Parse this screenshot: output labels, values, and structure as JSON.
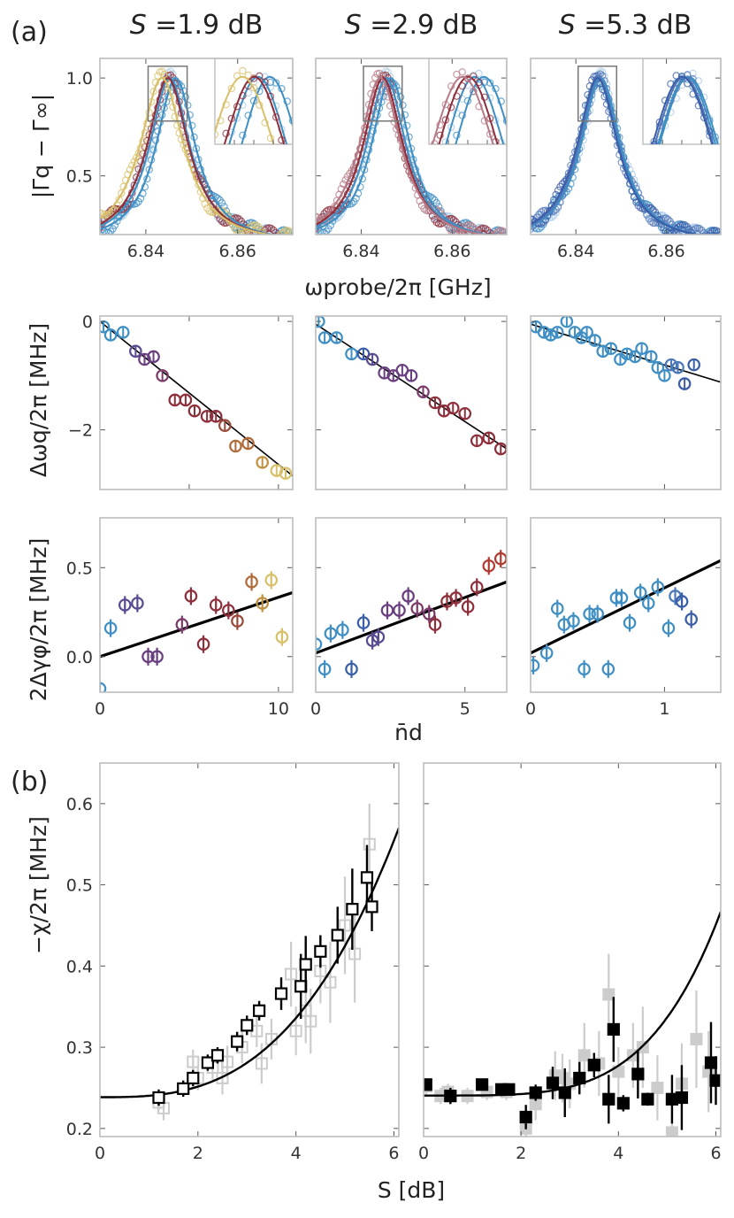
{
  "panel_labels": {
    "a": "(a)",
    "b": "(b)"
  },
  "titles": {
    "col1": {
      "sym": "S",
      "val": " =1.9 dB"
    },
    "col2": {
      "sym": "S",
      "val": " =2.9 dB"
    },
    "col3": {
      "sym": "S",
      "val": " =5.3 dB"
    }
  },
  "axis_labels": {
    "row1_y": "|Γq − Γ∞|",
    "row1_x": "ωprobe/2π [GHz]",
    "row2_y": "Δωq/2π [MHz]",
    "row3_y": "2Δγφ/2π [MHz]",
    "row3_x": "n̄d",
    "b_y": "−χ/2π [MHz]",
    "b_x": "S [dB]"
  },
  "colors": {
    "light_blue": "#8fbde0",
    "blue": "#3f8fc4",
    "dark_blue": "#3b5ea8",
    "purple": "#6a3f7f",
    "maroon": "#8e2f3c",
    "brown": "#b06a3a",
    "gold": "#d8c06a",
    "light_gray": "#cccccc",
    "black": "#000000"
  },
  "chart_data": [
    {
      "type": "scatter",
      "panel": "row1-col1",
      "title": "S =1.9 dB",
      "xlim": [
        6.83,
        6.872
      ],
      "ylim": [
        0.2,
        1.1
      ],
      "xticks": [
        6.84,
        6.86
      ],
      "yticks": [
        0.5,
        1.0
      ],
      "xtick_labels": [
        "6.84",
        "6.86"
      ],
      "ytick_labels": [
        "0.5",
        "1.0"
      ],
      "series": [
        {
          "name": "sky",
          "color": "#a8cbe8",
          "center": 6.8452,
          "hwhm": 0.0053
        },
        {
          "name": "blue",
          "color": "#3f8fc4",
          "center": 6.8465,
          "hwhm": 0.0052
        },
        {
          "name": "maroon",
          "color": "#8e2f3c",
          "center": 6.8448,
          "hwhm": 0.0055
        },
        {
          "name": "gold",
          "color": "#d8c06a",
          "center": 6.8435,
          "hwhm": 0.0058
        }
      ],
      "inset": {
        "xlim": [
          6.8405,
          6.849
        ],
        "ylim": [
          0.78,
          1.06
        ]
      }
    },
    {
      "type": "scatter",
      "panel": "row1-col2",
      "title": "S =2.9 dB",
      "xlim": [
        6.83,
        6.872
      ],
      "ylim": [
        0.2,
        1.1
      ],
      "xticks": [
        6.84,
        6.86
      ],
      "yticks": [
        0.5,
        1.0
      ],
      "xtick_labels": [
        "6.84",
        "6.86"
      ],
      "ytick_labels": [
        "",
        ""
      ],
      "series": [
        {
          "name": "sky",
          "color": "#a8cbe8",
          "center": 6.8455,
          "hwhm": 0.0053
        },
        {
          "name": "blue",
          "color": "#3f8fc4",
          "center": 6.8465,
          "hwhm": 0.0052
        },
        {
          "name": "maroon",
          "color": "#8e2f3c",
          "center": 6.8448,
          "hwhm": 0.0054
        },
        {
          "name": "rose",
          "color": "#b57a86",
          "center": 6.8442,
          "hwhm": 0.0056
        }
      ],
      "inset": {
        "xlim": [
          6.8405,
          6.849
        ],
        "ylim": [
          0.78,
          1.06
        ]
      }
    },
    {
      "type": "scatter",
      "panel": "row1-col3",
      "title": "S =5.3 dB",
      "xlim": [
        6.83,
        6.872
      ],
      "ylim": [
        0.2,
        1.1
      ],
      "xticks": [
        6.84,
        6.86
      ],
      "yticks": [
        0.5,
        1.0
      ],
      "xtick_labels": [
        "6.84",
        "6.86"
      ],
      "ytick_labels": [
        "",
        ""
      ],
      "series": [
        {
          "name": "sky",
          "color": "#a8cbe8",
          "center": 6.8455,
          "hwhm": 0.0054
        },
        {
          "name": "blue",
          "color": "#3f8fc4",
          "center": 6.8453,
          "hwhm": 0.0053
        },
        {
          "name": "mid",
          "color": "#5577b8",
          "center": 6.845,
          "hwhm": 0.0054
        },
        {
          "name": "navy",
          "color": "#3b5ea8",
          "center": 6.8448,
          "hwhm": 0.0055
        }
      ],
      "inset": {
        "xlim": [
          6.8405,
          6.849
        ],
        "ylim": [
          0.78,
          1.06
        ]
      }
    },
    {
      "type": "scatter",
      "panel": "row2-col1",
      "xlim": [
        0,
        10.8
      ],
      "ylim": [
        -3.1,
        0.1
      ],
      "xticks": [
        0,
        5,
        10
      ],
      "yticks": [
        0,
        -2
      ],
      "xtick_labels": [],
      "ytick_labels": [
        "0",
        "−2"
      ],
      "fit": {
        "x": [
          0,
          10.8
        ],
        "y": [
          0,
          -2.85
        ]
      },
      "points": {
        "x": [
          0.2,
          0.6,
          1.3,
          2.0,
          2.5,
          3.0,
          3.5,
          4.2,
          4.8,
          5.3,
          6.0,
          6.5,
          7.0,
          7.6,
          8.3,
          9.1,
          9.9,
          10.4
        ],
        "y": [
          -0.1,
          -0.25,
          -0.2,
          -0.55,
          -0.7,
          -0.65,
          -1.0,
          -1.45,
          -1.45,
          -1.65,
          -1.75,
          -1.75,
          -1.92,
          -2.3,
          -2.25,
          -2.6,
          -2.75,
          -2.8
        ],
        "colors": [
          "#3f8fc4",
          "#3f8fc4",
          "#3f8fc4",
          "#5a4a8f",
          "#6a3f7f",
          "#6a3f7f",
          "#7a3a6a",
          "#8e2f3c",
          "#8e2f3c",
          "#8e2f3c",
          "#8e2f3c",
          "#8e2f3c",
          "#9a4a3a",
          "#b06a3a",
          "#b06a3a",
          "#c09040",
          "#d8c06a",
          "#d8c06a"
        ]
      }
    },
    {
      "type": "scatter",
      "panel": "row2-col2",
      "xlim": [
        0,
        6.4
      ],
      "ylim": [
        -3.1,
        0.1
      ],
      "xticks": [
        0,
        5
      ],
      "yticks": [
        0,
        -2
      ],
      "xtick_labels": [],
      "ytick_labels": [
        "",
        ""
      ],
      "fit": {
        "x": [
          0,
          6.4
        ],
        "y": [
          -0.05,
          -2.35
        ]
      },
      "points": {
        "x": [
          0.1,
          0.3,
          0.7,
          1.2,
          1.6,
          1.9,
          2.3,
          2.6,
          2.9,
          3.2,
          3.6,
          4.0,
          4.3,
          4.6,
          5.0,
          5.4,
          5.8,
          6.2
        ],
        "y": [
          0.0,
          -0.3,
          -0.3,
          -0.6,
          -0.6,
          -0.7,
          -0.95,
          -1.0,
          -0.9,
          -1.0,
          -1.3,
          -1.5,
          -1.65,
          -1.6,
          -1.7,
          -2.2,
          -2.15,
          -2.35
        ],
        "colors": [
          "#3f8fc4",
          "#3f8fc4",
          "#3f8fc4",
          "#3f8fc4",
          "#3b5ea8",
          "#5a4a8f",
          "#6a3f7f",
          "#6a3f7f",
          "#6a3f7f",
          "#6a3f7f",
          "#7a3a6a",
          "#8e2f3c",
          "#8e2f3c",
          "#8e2f3c",
          "#8e2f3c",
          "#8e2f3c",
          "#8e2f3c",
          "#8e2f3c"
        ]
      }
    },
    {
      "type": "scatter",
      "panel": "row2-col3",
      "xlim": [
        0,
        1.42
      ],
      "ylim": [
        -3.1,
        0.1
      ],
      "xticks": [
        0,
        1
      ],
      "yticks": [
        0,
        -2
      ],
      "xtick_labels": [],
      "ytick_labels": [
        "",
        ""
      ],
      "fit": {
        "x": [
          0,
          1.42
        ],
        "y": [
          -0.05,
          -1.12
        ]
      },
      "points": {
        "x": [
          0.04,
          0.1,
          0.15,
          0.2,
          0.27,
          0.33,
          0.38,
          0.42,
          0.48,
          0.54,
          0.6,
          0.67,
          0.72,
          0.78,
          0.83,
          0.9,
          0.95,
          1.0,
          1.05,
          1.1,
          1.15,
          1.22
        ],
        "y": [
          -0.1,
          -0.2,
          -0.25,
          -0.2,
          0.0,
          -0.2,
          -0.3,
          -0.2,
          -0.35,
          -0.55,
          -0.5,
          -0.7,
          -0.6,
          -0.65,
          -0.5,
          -0.65,
          -0.85,
          -1.0,
          -0.8,
          -0.85,
          -1.15,
          -0.8
        ],
        "colors": [
          "#3f8fc4",
          "#3f8fc4",
          "#3f8fc4",
          "#3f8fc4",
          "#3f8fc4",
          "#3f8fc4",
          "#3f8fc4",
          "#3f8fc4",
          "#3f8fc4",
          "#3f8fc4",
          "#3f8fc4",
          "#3f8fc4",
          "#3f8fc4",
          "#3f8fc4",
          "#3f8fc4",
          "#3f8fc4",
          "#3f8fc4",
          "#3f8fc4",
          "#4a78b8",
          "#4a78b8",
          "#3b5ea8",
          "#3b5ea8"
        ]
      }
    },
    {
      "type": "scatter",
      "panel": "row3-col1",
      "xlim": [
        0,
        10.8
      ],
      "ylim": [
        -0.2,
        0.78
      ],
      "xticks": [
        0,
        10
      ],
      "yticks": [
        0.5,
        0.0
      ],
      "xtick_labels": [
        "0",
        "10"
      ],
      "ytick_labels": [
        "0.5",
        "0.0"
      ],
      "fit": {
        "x": [
          0,
          10.8
        ],
        "y": [
          0.0,
          0.36
        ]
      },
      "points": {
        "x": [
          0.0,
          0.6,
          1.4,
          2.1,
          2.7,
          3.2,
          4.6,
          5.1,
          5.8,
          6.5,
          7.2,
          7.7,
          8.5,
          9.1,
          9.6,
          10.2
        ],
        "y": [
          -0.18,
          0.16,
          0.29,
          0.3,
          0.0,
          0.0,
          0.18,
          0.34,
          0.07,
          0.29,
          0.26,
          0.2,
          0.42,
          0.3,
          0.43,
          0.11
        ],
        "err": [
          0.04,
          0.05,
          0.05,
          0.05,
          0.05,
          0.05,
          0.05,
          0.05,
          0.05,
          0.05,
          0.05,
          0.05,
          0.05,
          0.05,
          0.05,
          0.05
        ],
        "colors": [
          "#3f8fc4",
          "#3f8fc4",
          "#5a4a8f",
          "#5a4a8f",
          "#6a3f7f",
          "#6a3f7f",
          "#7a3a6a",
          "#8e2f3c",
          "#8e2f3c",
          "#8e2f3c",
          "#8e2f3c",
          "#9a4a3a",
          "#b06a3a",
          "#c09040",
          "#d8c06a",
          "#d8c06a"
        ]
      }
    },
    {
      "type": "scatter",
      "panel": "row3-col2",
      "xlim": [
        0,
        6.4
      ],
      "ylim": [
        -0.2,
        0.78
      ],
      "xticks": [
        0,
        5
      ],
      "yticks": [
        0.5,
        0.0
      ],
      "xtick_labels": [
        "0",
        "5"
      ],
      "ytick_labels": [
        "",
        ""
      ],
      "fit": {
        "x": [
          0,
          6.4
        ],
        "y": [
          0.02,
          0.42
        ]
      },
      "points": {
        "x": [
          0.0,
          0.3,
          0.5,
          0.9,
          1.2,
          1.6,
          1.9,
          2.1,
          2.4,
          2.8,
          3.1,
          3.4,
          3.8,
          4.0,
          4.4,
          4.7,
          5.1,
          5.4,
          5.8,
          6.2
        ],
        "y": [
          0.07,
          -0.07,
          0.13,
          0.15,
          -0.07,
          0.19,
          0.09,
          0.11,
          0.26,
          0.26,
          0.34,
          0.27,
          0.24,
          0.18,
          0.31,
          0.33,
          0.28,
          0.39,
          0.51,
          0.55
        ],
        "err": [
          0.05,
          0.05,
          0.05,
          0.05,
          0.05,
          0.05,
          0.05,
          0.05,
          0.05,
          0.05,
          0.05,
          0.05,
          0.05,
          0.05,
          0.05,
          0.05,
          0.05,
          0.05,
          0.05,
          0.05
        ],
        "colors": [
          "#3f8fc4",
          "#3f8fc4",
          "#3f8fc4",
          "#3f8fc4",
          "#3b5ea8",
          "#3b5ea8",
          "#5a4a8f",
          "#5a4a8f",
          "#6a3f7f",
          "#6a3f7f",
          "#6a3f7f",
          "#7a3a6a",
          "#7a3a6a",
          "#8e2f3c",
          "#8e2f3c",
          "#8e2f3c",
          "#8e2f3c",
          "#8e2f3c",
          "#b03a30",
          "#b03a30"
        ]
      }
    },
    {
      "type": "scatter",
      "panel": "row3-col3",
      "xlim": [
        0,
        1.42
      ],
      "ylim": [
        -0.2,
        0.78
      ],
      "xticks": [
        0,
        1
      ],
      "yticks": [
        0.5,
        0.0
      ],
      "xtick_labels": [
        "0",
        "1"
      ],
      "ytick_labels": [
        "",
        ""
      ],
      "fit": {
        "x": [
          0,
          1.42
        ],
        "y": [
          0.02,
          0.54
        ]
      },
      "points": {
        "x": [
          0.02,
          0.12,
          0.2,
          0.25,
          0.32,
          0.4,
          0.44,
          0.5,
          0.58,
          0.64,
          0.68,
          0.74,
          0.82,
          0.88,
          0.95,
          1.03,
          1.08,
          1.13,
          1.2
        ],
        "y": [
          -0.05,
          0.02,
          0.27,
          0.18,
          0.2,
          -0.07,
          0.24,
          0.24,
          -0.07,
          0.33,
          0.33,
          0.19,
          0.36,
          0.3,
          0.39,
          0.16,
          0.34,
          0.31,
          0.21
        ],
        "err": [
          0.05,
          0.05,
          0.05,
          0.05,
          0.05,
          0.05,
          0.05,
          0.05,
          0.05,
          0.05,
          0.05,
          0.05,
          0.05,
          0.05,
          0.05,
          0.05,
          0.05,
          0.05,
          0.05
        ],
        "colors": [
          "#3f8fc4",
          "#3f8fc4",
          "#3f8fc4",
          "#3f8fc4",
          "#3f8fc4",
          "#3f8fc4",
          "#3f8fc4",
          "#3f8fc4",
          "#3f8fc4",
          "#3f8fc4",
          "#3f8fc4",
          "#3f8fc4",
          "#3f8fc4",
          "#3f8fc4",
          "#3f8fc4",
          "#3f8fc4",
          "#4a78b8",
          "#3b5ea8",
          "#3b5ea8"
        ]
      }
    },
    {
      "type": "scatter",
      "panel": "b-left",
      "xlim": [
        0,
        6.1
      ],
      "ylim": [
        0.19,
        0.65
      ],
      "xticks": [
        0,
        2,
        4,
        6
      ],
      "yticks": [
        0.2,
        0.3,
        0.4,
        0.5,
        0.6
      ],
      "xtick_labels": [
        "0",
        "2",
        "4",
        "6"
      ],
      "ytick_labels": [
        "0.2",
        "0.3",
        "0.4",
        "0.5",
        "0.6"
      ],
      "curve": {
        "a": 0.2385,
        "k": 0.00175,
        "p": 2.9
      },
      "black_points": {
        "x": [
          1.2,
          1.7,
          1.9,
          2.2,
          2.4,
          2.8,
          3.0,
          3.25,
          3.7,
          4.1,
          4.2,
          4.5,
          4.85,
          5.15,
          5.45,
          5.55
        ],
        "y": [
          0.238,
          0.249,
          0.262,
          0.281,
          0.29,
          0.307,
          0.327,
          0.345,
          0.366,
          0.375,
          0.402,
          0.418,
          0.438,
          0.47,
          0.509,
          0.473
        ],
        "err": [
          0.01,
          0.01,
          0.01,
          0.01,
          0.01,
          0.012,
          0.012,
          0.012,
          0.02,
          0.04,
          0.035,
          0.02,
          0.035,
          0.05,
          0.04,
          0.03
        ]
      },
      "gray_points": {
        "x": [
          1.2,
          1.3,
          1.9,
          2.0,
          2.3,
          2.5,
          2.6,
          2.9,
          3.2,
          3.3,
          3.5,
          3.9,
          4.0,
          4.2,
          4.3,
          4.5,
          4.7,
          5.0,
          5.2,
          5.5
        ],
        "y": [
          0.232,
          0.225,
          0.282,
          0.262,
          0.275,
          0.262,
          0.282,
          0.3,
          0.32,
          0.28,
          0.31,
          0.39,
          0.32,
          0.345,
          0.332,
          0.394,
          0.38,
          0.45,
          0.415,
          0.55
        ],
        "err": [
          0.01,
          0.015,
          0.015,
          0.015,
          0.015,
          0.02,
          0.02,
          0.02,
          0.02,
          0.025,
          0.025,
          0.04,
          0.03,
          0.04,
          0.04,
          0.04,
          0.05,
          0.06,
          0.06,
          0.05
        ]
      }
    },
    {
      "type": "scatter",
      "panel": "b-right",
      "xlim": [
        0,
        6.1
      ],
      "ylim": [
        0.19,
        0.65
      ],
      "xticks": [
        0,
        2,
        4,
        6
      ],
      "yticks": [
        0.2,
        0.3,
        0.4,
        0.5,
        0.6
      ],
      "xtick_labels": [
        "0",
        "2",
        "4",
        "6"
      ],
      "ytick_labels": [
        "",
        "",
        "",
        "",
        ""
      ],
      "curve": {
        "a": 0.2405,
        "k": 9.5e-05,
        "p": 4.3
      },
      "black_points": {
        "x": [
          0.05,
          0.55,
          1.2,
          1.6,
          1.75,
          2.1,
          2.3,
          2.65,
          2.9,
          3.2,
          3.5,
          3.8,
          3.9,
          4.1,
          4.4,
          4.6,
          5.1,
          5.3,
          5.9,
          6.0
        ],
        "y": [
          0.254,
          0.24,
          0.254,
          0.248,
          0.248,
          0.214,
          0.244,
          0.256,
          0.244,
          0.262,
          0.278,
          0.236,
          0.322,
          0.231,
          0.267,
          0.236,
          0.236,
          0.238,
          0.281,
          0.259
        ],
        "err": [
          0.005,
          0.01,
          0.005,
          0.005,
          0.005,
          0.015,
          0.01,
          0.02,
          0.03,
          0.02,
          0.015,
          0.03,
          0.04,
          0.01,
          0.03,
          0.008,
          0.03,
          0.04,
          0.05,
          0.03
        ]
      },
      "gray_points": {
        "x": [
          0.05,
          0.35,
          0.5,
          0.9,
          1.3,
          1.7,
          2.1,
          2.3,
          2.7,
          2.85,
          3.0,
          3.3,
          3.6,
          3.8,
          4.0,
          4.3,
          4.5,
          4.8,
          5.1,
          5.3,
          5.6,
          5.85
        ],
        "y": [
          0.252,
          0.24,
          0.245,
          0.24,
          0.245,
          0.245,
          0.2,
          0.23,
          0.265,
          0.262,
          0.255,
          0.29,
          0.28,
          0.365,
          0.27,
          0.29,
          0.3,
          0.25,
          0.195,
          0.255,
          0.31,
          0.27
        ],
        "err": [
          0.01,
          0.01,
          0.01,
          0.01,
          0.01,
          0.01,
          0.02,
          0.02,
          0.03,
          0.03,
          0.03,
          0.04,
          0.04,
          0.05,
          0.03,
          0.04,
          0.05,
          0.04,
          0.03,
          0.05,
          0.06,
          0.05
        ]
      }
    }
  ]
}
